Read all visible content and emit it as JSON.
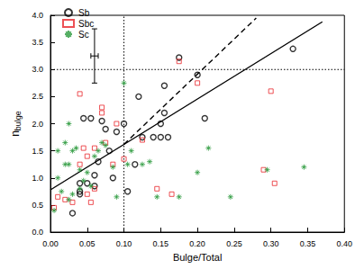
{
  "chart_data": {
    "type": "scatter",
    "xlabel": "Bulge/Total",
    "ylabel": "n",
    "ylabel_subscript": "bulge",
    "xlim": [
      0,
      0.4
    ],
    "ylim": [
      0,
      4
    ],
    "xticks": [
      {
        "value": 0,
        "label": "0.00"
      },
      {
        "value": 0.05,
        "label": "0.05"
      },
      {
        "value": 0.1,
        "label": "0.10"
      },
      {
        "value": 0.15,
        "label": "0.15"
      },
      {
        "value": 0.2,
        "label": "0.20"
      },
      {
        "value": 0.25,
        "label": "0.25"
      },
      {
        "value": 0.3,
        "label": "0.30"
      },
      {
        "value": 0.35,
        "label": "0.35"
      },
      {
        "value": 0.4,
        "label": "0.40"
      }
    ],
    "yticks": [
      {
        "value": 0,
        "label": "0.0"
      },
      {
        "value": 0.5,
        "label": "0.5"
      },
      {
        "value": 1,
        "label": "1.0"
      },
      {
        "value": 1.5,
        "label": "1.5"
      },
      {
        "value": 2,
        "label": "2.0"
      },
      {
        "value": 2.5,
        "label": "2.5"
      },
      {
        "value": 3,
        "label": "3.0"
      },
      {
        "value": 3.5,
        "label": "3.5"
      },
      {
        "value": 4,
        "label": "4.0"
      }
    ],
    "grid": false,
    "legend": "upper left",
    "series": [
      {
        "name": "Sb",
        "type": "scatter",
        "marker": "circle",
        "color": "#000000",
        "x": [
          0.03,
          0.04,
          0.04,
          0.045,
          0.05,
          0.055,
          0.06,
          0.06,
          0.065,
          0.07,
          0.075,
          0.08,
          0.085,
          0.09,
          0.1,
          0.105,
          0.115,
          0.12,
          0.125,
          0.14,
          0.15,
          0.15,
          0.155,
          0.155,
          0.16,
          0.175,
          0.2,
          0.21,
          0.33,
          0.04
        ],
        "values": [
          0.35,
          0.75,
          0.9,
          2.1,
          0.9,
          2.1,
          0.85,
          1.05,
          1.3,
          2.05,
          1.9,
          1.5,
          1.0,
          1.85,
          2.0,
          0.75,
          1.25,
          2.5,
          1.75,
          1.75,
          1.75,
          2.0,
          2.7,
          2.2,
          1.75,
          3.22,
          2.9,
          2.1,
          3.38,
          0.7
        ]
      },
      {
        "name": "Sbc",
        "type": "scatter",
        "marker": "square",
        "color": "#e8252b",
        "x": [
          0.005,
          0.01,
          0.02,
          0.03,
          0.04,
          0.04,
          0.045,
          0.05,
          0.055,
          0.06,
          0.06,
          0.07,
          0.07,
          0.075,
          0.085,
          0.09,
          0.1,
          0.125,
          0.145,
          0.165,
          0.175,
          0.2,
          0.29,
          0.3,
          0.305,
          0.05
        ],
        "values": [
          0.45,
          0.65,
          0.6,
          0.55,
          2.55,
          1.25,
          1.55,
          1.4,
          0.55,
          0.8,
          1.55,
          2.3,
          2.2,
          1.65,
          1.25,
          2.0,
          1.35,
          1.7,
          0.8,
          0.7,
          3.15,
          2.75,
          1.15,
          2.6,
          0.9,
          0.7
        ]
      },
      {
        "name": "Sc",
        "type": "scatter",
        "marker": "asterisk",
        "color": "#2a9a3c",
        "x": [
          0.005,
          0.01,
          0.01,
          0.015,
          0.02,
          0.02,
          0.025,
          0.025,
          0.025,
          0.03,
          0.03,
          0.035,
          0.04,
          0.04,
          0.045,
          0.05,
          0.055,
          0.06,
          0.065,
          0.07,
          0.075,
          0.085,
          0.09,
          0.1,
          0.105,
          0.11,
          0.125,
          0.135,
          0.145,
          0.175,
          0.2,
          0.215,
          0.245,
          0.295,
          0.345
        ],
        "values": [
          0.4,
          1.0,
          1.5,
          0.75,
          1.25,
          1.65,
          1.25,
          0.6,
          2.0,
          1.5,
          0.7,
          1.55,
          0.8,
          1.15,
          0.95,
          1.1,
          0.85,
          1.4,
          1.5,
          1.65,
          1.6,
          1.2,
          0.65,
          2.75,
          1.25,
          1.5,
          1.25,
          1.3,
          0.65,
          0.65,
          1.1,
          1.55,
          0.65,
          1.15,
          1.2
        ]
      },
      {
        "type": "line",
        "line_style": "solid",
        "color": "#000000",
        "x": [
          0,
          0.37
        ],
        "values": [
          0.78,
          3.88
        ]
      },
      {
        "type": "line",
        "line_style": "dashed",
        "color": "#000000",
        "x": [
          0.1,
          0.28
        ],
        "values": [
          1.62,
          3.95
        ]
      },
      {
        "type": "line",
        "line_style": "dotted",
        "color": "#000000",
        "x": [
          0.1,
          0.1
        ],
        "values": [
          0,
          4
        ]
      },
      {
        "type": "line",
        "line_style": "dotted",
        "color": "#000000",
        "x": [
          0,
          0.4
        ],
        "values": [
          3,
          3
        ]
      }
    ],
    "error_bar": {
      "x": 0.06,
      "y": 3.25,
      "xerr": 0.005,
      "yerr": 0.5,
      "color": "#000000"
    }
  }
}
